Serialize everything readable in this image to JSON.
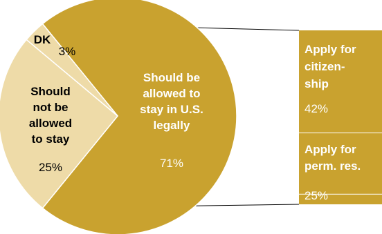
{
  "chart_data": {
    "type": "pie",
    "slices": [
      {
        "label": "Should be allowed to stay in U.S. legally",
        "label_lines": [
          "Should be",
          "allowed to",
          "stay in U.S.",
          "legally"
        ],
        "value": 71,
        "display": "71%",
        "color": "#c9a22f"
      },
      {
        "label": "Should not be allowed to stay",
        "label_lines": [
          "Should",
          "not be",
          "allowed",
          "to stay"
        ],
        "value": 25,
        "display": "25%",
        "color": "#eedba8"
      },
      {
        "label": "DK",
        "label_lines": [
          "DK"
        ],
        "value": 3,
        "display": "3%",
        "color": "#eedba8"
      }
    ],
    "breakdown": {
      "parent": "Should be allowed to stay in U.S. legally",
      "segments": [
        {
          "label": "Apply for citizenship",
          "label_lines": [
            "Apply for",
            "citizen-",
            "ship"
          ],
          "value": 42,
          "display": "42%"
        },
        {
          "label": "Apply for perm. res.",
          "label_lines": [
            "Apply for",
            "perm. res."
          ],
          "value": 25,
          "display": "25%"
        }
      ],
      "remainder": 4,
      "color": "#c9a22f"
    },
    "colors": {
      "main": "#c9a22f",
      "light": "#eedba8",
      "text_dark": "#000000",
      "text_light": "#ffffff",
      "divider": "#ffffff"
    }
  }
}
